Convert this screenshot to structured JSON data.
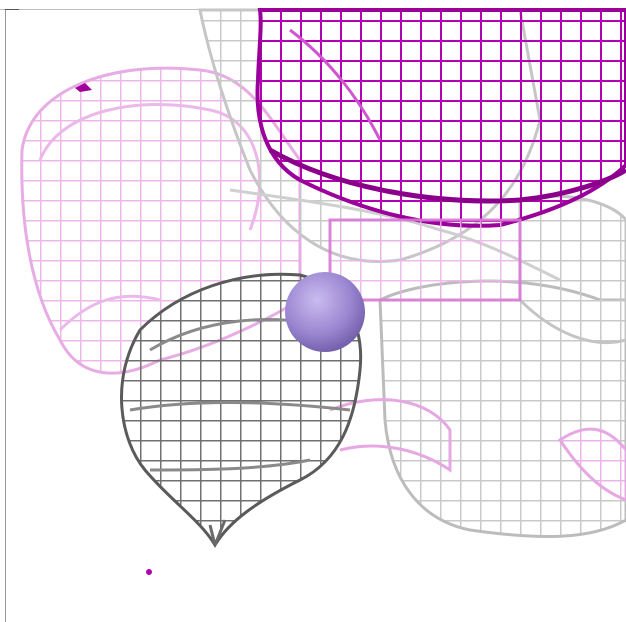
{
  "scene": {
    "background": "#ffffff",
    "colors": {
      "magenta_dark": "#b400b4",
      "magenta_light": "#e9a3e6",
      "gray_mesh": "#c8c8c8",
      "gray_dark": "#6a6a6a",
      "atom": "#9b86d1"
    },
    "elements": [
      "magenta-mesh-top",
      "pink-mesh-left",
      "gray-mesh-center",
      "gray-mesh-right",
      "atom-sphere",
      "magenta-dot-small",
      "magenta-dot-bottom"
    ]
  }
}
